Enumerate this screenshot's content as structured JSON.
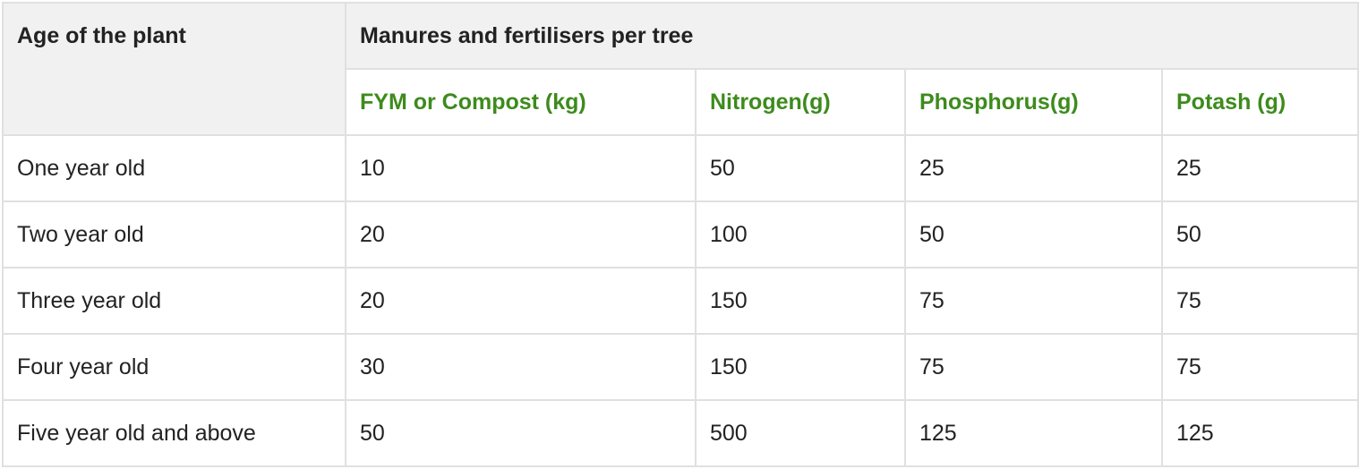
{
  "table": {
    "row_header": "Age of the plant",
    "group_header": "Manures and fertilisers per tree",
    "columns": [
      "FYM or Compost (kg)",
      "Nitrogen(g)",
      "Phosphorus(g)",
      "Potash (g)"
    ],
    "rows": [
      {
        "age": "One year old",
        "values": [
          "10",
          "50",
          "25",
          "25"
        ]
      },
      {
        "age": "Two year old",
        "values": [
          "20",
          "100",
          "50",
          "50"
        ]
      },
      {
        "age": "Three year old",
        "values": [
          "20",
          "150",
          "75",
          "75"
        ]
      },
      {
        "age": "Four year old",
        "values": [
          "30",
          "150",
          "75",
          "75"
        ]
      },
      {
        "age": "Five year old and above",
        "values": [
          "50",
          "500",
          "125",
          "125"
        ]
      }
    ],
    "header_color": "#3d8b1d"
  }
}
